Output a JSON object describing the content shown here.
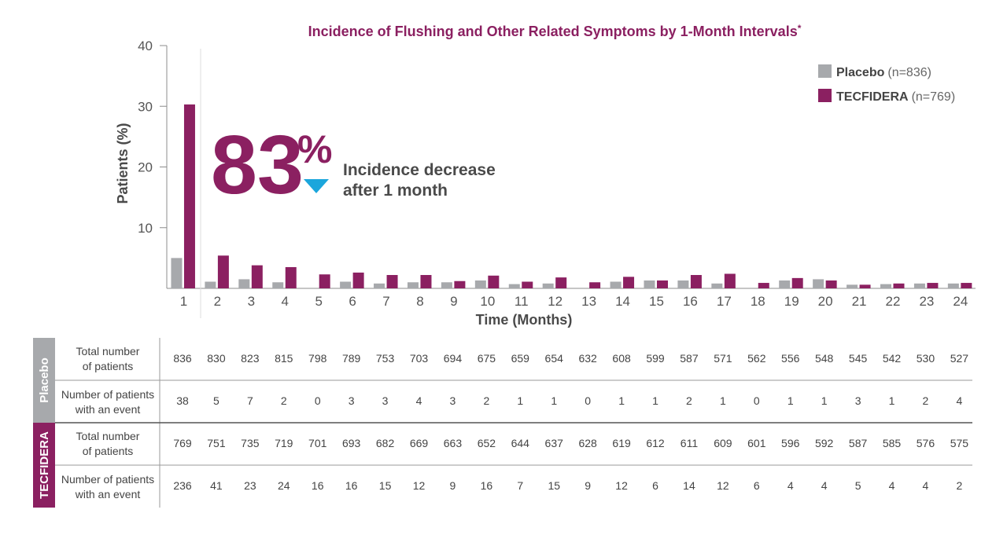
{
  "chart_data": {
    "type": "bar",
    "title": "Incidence of Flushing and Other Related Symptoms by 1-Month Intervals",
    "title_mark": "*",
    "xlabel": "Time (Months)",
    "ylabel": "Patients (%)",
    "ylim": [
      0,
      40
    ],
    "yticks": [
      "10",
      "20",
      "30",
      "40"
    ],
    "categories": [
      "1",
      "2",
      "3",
      "4",
      "5",
      "6",
      "7",
      "8",
      "9",
      "10",
      "11",
      "12",
      "13",
      "14",
      "15",
      "16",
      "17",
      "18",
      "19",
      "20",
      "21",
      "22",
      "23",
      "24"
    ],
    "series": [
      {
        "name": "Placebo",
        "n_label": "(n=836)",
        "color": "#a7a9ac",
        "values": [
          5.0,
          1.1,
          1.5,
          1.0,
          0.0,
          1.1,
          0.8,
          1.0,
          1.0,
          1.3,
          0.7,
          0.8,
          0.0,
          1.1,
          1.3,
          1.3,
          0.8,
          0.0,
          1.3,
          1.5,
          0.6,
          0.7,
          0.8,
          0.8
        ]
      },
      {
        "name": "TECFIDERA",
        "n_label": "(n=769)",
        "color": "#8b2061",
        "values": [
          30.3,
          5.4,
          3.8,
          3.5,
          2.3,
          2.6,
          2.2,
          2.2,
          1.2,
          2.1,
          1.1,
          1.8,
          1.0,
          1.9,
          1.3,
          2.2,
          2.4,
          0.9,
          1.7,
          1.3,
          0.6,
          0.8,
          0.9,
          0.9
        ]
      }
    ],
    "legend_position": "top-right",
    "grid": false,
    "annotation": {
      "value": "83",
      "unit": "%",
      "line1": "Incidence decrease",
      "line2": "after 1 month",
      "marker_color": "#1ba6dc"
    }
  },
  "table": {
    "row_labels": {
      "total_line1": "Total number",
      "total_line2": "of patients",
      "event_line1": "Number of patients",
      "event_line2": "with an event"
    },
    "groups": [
      {
        "name": "Placebo",
        "color": "#a7a9ac",
        "total": [
          "836",
          "830",
          "823",
          "815",
          "798",
          "789",
          "753",
          "703",
          "694",
          "675",
          "659",
          "654",
          "632",
          "608",
          "599",
          "587",
          "571",
          "562",
          "556",
          "548",
          "545",
          "542",
          "530",
          "527"
        ],
        "events": [
          "38",
          "5",
          "7",
          "2",
          "0",
          "3",
          "3",
          "4",
          "3",
          "2",
          "1",
          "1",
          "0",
          "1",
          "1",
          "2",
          "1",
          "0",
          "1",
          "1",
          "3",
          "1",
          "2",
          "4"
        ]
      },
      {
        "name": "TECFIDERA",
        "color": "#8b2061",
        "total": [
          "769",
          "751",
          "735",
          "719",
          "701",
          "693",
          "682",
          "669",
          "663",
          "652",
          "644",
          "637",
          "628",
          "619",
          "612",
          "611",
          "609",
          "601",
          "596",
          "592",
          "587",
          "585",
          "576",
          "575"
        ],
        "events": [
          "236",
          "41",
          "23",
          "24",
          "16",
          "16",
          "15",
          "12",
          "9",
          "16",
          "7",
          "15",
          "9",
          "12",
          "6",
          "14",
          "12",
          "6",
          "4",
          "4",
          "5",
          "4",
          "4",
          "2"
        ]
      }
    ]
  }
}
